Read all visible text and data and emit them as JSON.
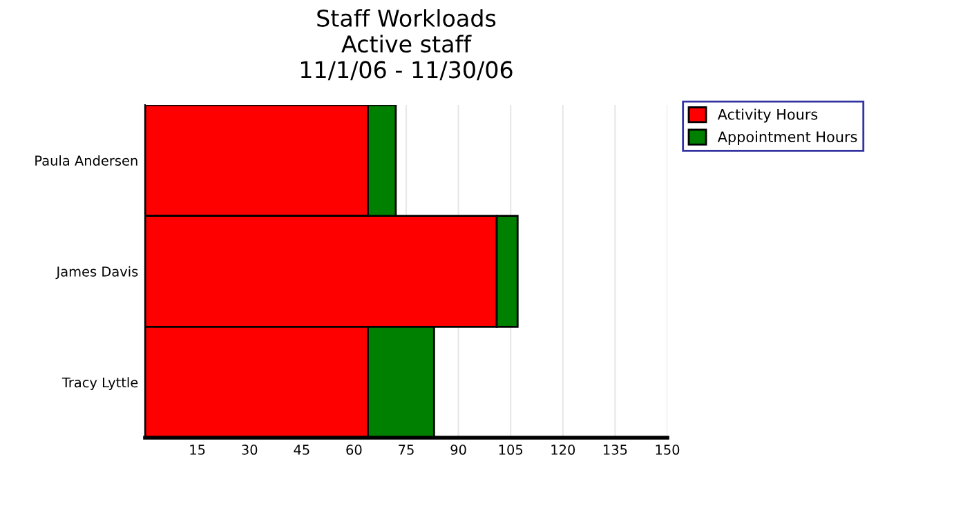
{
  "chart_data": {
    "type": "bar",
    "orientation": "horizontal",
    "stacked": true,
    "title": "Staff Workloads\nActive staff\n11/1/06 - 11/30/06",
    "categories": [
      "Paula Andersen",
      "James Davis",
      "Tracy Lyttle"
    ],
    "series": [
      {
        "name": "Activity Hours",
        "color": "#ff0000",
        "values": [
          64,
          101,
          64
        ]
      },
      {
        "name": "Appointment Hours",
        "color": "#008000",
        "values": [
          8,
          6,
          19
        ]
      }
    ],
    "xlim": [
      0,
      150
    ],
    "xticks": [
      15,
      30,
      45,
      60,
      75,
      90,
      105,
      120,
      135,
      150
    ],
    "grid": "x",
    "legend": "right"
  }
}
